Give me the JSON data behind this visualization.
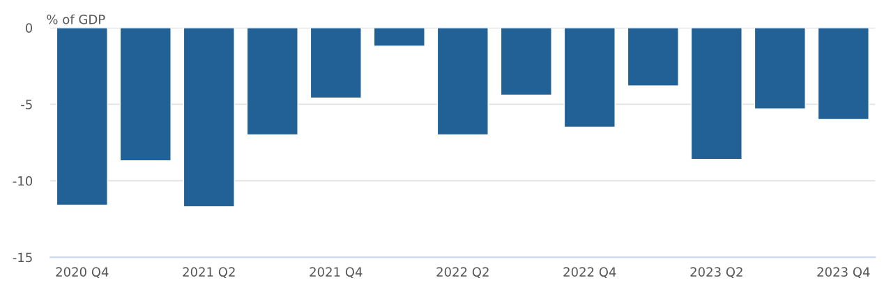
{
  "chart_data": {
    "type": "bar",
    "ylabel": "% of GDP",
    "categories": [
      "2020 Q4",
      null,
      "2021 Q2",
      null,
      "2021 Q4",
      null,
      "2022 Q2",
      null,
      "2022 Q4",
      null,
      "2023 Q2",
      null,
      "2023 Q4"
    ],
    "values": [
      -11.6,
      -8.7,
      -11.7,
      -7.0,
      -4.6,
      -1.2,
      -7.0,
      -4.4,
      -6.5,
      -3.8,
      -8.6,
      -5.3,
      -6.0
    ],
    "color": "#216196",
    "ylim": [
      -15,
      0
    ],
    "yticks": [
      -15,
      -10,
      -5,
      0
    ],
    "grid": "y"
  }
}
